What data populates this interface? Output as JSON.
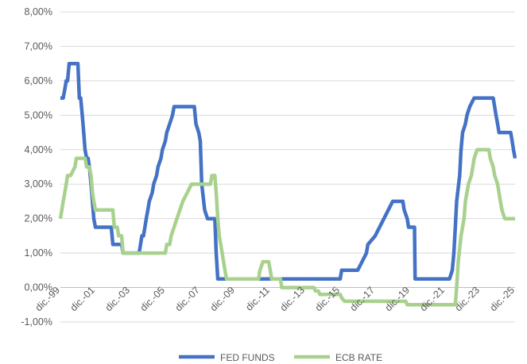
{
  "chart_data": {
    "type": "line",
    "title": "",
    "xlabel": "",
    "ylabel": "",
    "ylim": [
      -1,
      8
    ],
    "y_ticks": [
      "8,00%",
      "7,00%",
      "6,00%",
      "5,00%",
      "4,00%",
      "3,00%",
      "2,00%",
      "1,00%",
      "0,00%",
      "-1,00%"
    ],
    "y_tick_values": [
      8,
      7,
      6,
      5,
      4,
      3,
      2,
      1,
      0,
      -1
    ],
    "x_ticks": [
      "dic.-99",
      "dic.-01",
      "dic.-03",
      "dic.-05",
      "dic.-07",
      "dic.-09",
      "dic.-11",
      "dic.-13",
      "dic.-15",
      "dic.-17",
      "dic.-19",
      "dic.-21",
      "dic.-23",
      "dic.-25"
    ],
    "x_tick_values": [
      1999.92,
      2001.92,
      2003.92,
      2005.92,
      2007.92,
      2009.92,
      2011.92,
      2013.92,
      2015.92,
      2017.92,
      2019.92,
      2021.92,
      2023.92,
      2025.92
    ],
    "xlim": [
      1999.92,
      2025.92
    ],
    "grid": "horizontal",
    "legend_position": "bottom",
    "series": [
      {
        "name": "FED FUNDS",
        "color": "#4472C4",
        "points": [
          [
            1999.92,
            5.5
          ],
          [
            2000.08,
            5.5
          ],
          [
            2000.17,
            5.75
          ],
          [
            2000.25,
            6.0
          ],
          [
            2000.33,
            6.0
          ],
          [
            2000.42,
            6.5
          ],
          [
            2000.92,
            6.5
          ],
          [
            2001.0,
            5.5
          ],
          [
            2001.08,
            5.5
          ],
          [
            2001.17,
            5.0
          ],
          [
            2001.25,
            4.5
          ],
          [
            2001.33,
            4.0
          ],
          [
            2001.42,
            3.75
          ],
          [
            2001.5,
            3.75
          ],
          [
            2001.58,
            3.5
          ],
          [
            2001.67,
            3.0
          ],
          [
            2001.75,
            2.5
          ],
          [
            2001.83,
            2.0
          ],
          [
            2001.92,
            1.75
          ],
          [
            2002.83,
            1.75
          ],
          [
            2002.92,
            1.25
          ],
          [
            2003.42,
            1.25
          ],
          [
            2003.5,
            1.0
          ],
          [
            2004.42,
            1.0
          ],
          [
            2004.5,
            1.25
          ],
          [
            2004.58,
            1.5
          ],
          [
            2004.67,
            1.5
          ],
          [
            2004.75,
            1.75
          ],
          [
            2004.83,
            2.0
          ],
          [
            2004.92,
            2.25
          ],
          [
            2005.0,
            2.5
          ],
          [
            2005.17,
            2.75
          ],
          [
            2005.25,
            3.0
          ],
          [
            2005.42,
            3.25
          ],
          [
            2005.5,
            3.5
          ],
          [
            2005.67,
            3.75
          ],
          [
            2005.75,
            4.0
          ],
          [
            2005.92,
            4.25
          ],
          [
            2006.0,
            4.5
          ],
          [
            2006.17,
            4.75
          ],
          [
            2006.33,
            5.0
          ],
          [
            2006.42,
            5.25
          ],
          [
            2007.58,
            5.25
          ],
          [
            2007.67,
            4.75
          ],
          [
            2007.83,
            4.5
          ],
          [
            2007.92,
            4.25
          ],
          [
            2008.0,
            3.0
          ],
          [
            2008.17,
            2.25
          ],
          [
            2008.33,
            2.0
          ],
          [
            2008.75,
            2.0
          ],
          [
            2008.83,
            1.0
          ],
          [
            2008.92,
            0.25
          ],
          [
            2015.92,
            0.25
          ],
          [
            2016.0,
            0.5
          ],
          [
            2016.92,
            0.5
          ],
          [
            2017.17,
            0.75
          ],
          [
            2017.42,
            1.0
          ],
          [
            2017.5,
            1.25
          ],
          [
            2017.92,
            1.5
          ],
          [
            2018.17,
            1.75
          ],
          [
            2018.42,
            2.0
          ],
          [
            2018.67,
            2.25
          ],
          [
            2018.92,
            2.5
          ],
          [
            2019.5,
            2.5
          ],
          [
            2019.58,
            2.25
          ],
          [
            2019.75,
            2.0
          ],
          [
            2019.83,
            1.75
          ],
          [
            2020.17,
            1.75
          ],
          [
            2020.2,
            0.25
          ],
          [
            2022.17,
            0.25
          ],
          [
            2022.33,
            0.5
          ],
          [
            2022.42,
            1.0
          ],
          [
            2022.5,
            1.75
          ],
          [
            2022.58,
            2.5
          ],
          [
            2022.75,
            3.25
          ],
          [
            2022.83,
            4.0
          ],
          [
            2022.92,
            4.5
          ],
          [
            2023.08,
            4.75
          ],
          [
            2023.17,
            5.0
          ],
          [
            2023.33,
            5.25
          ],
          [
            2023.58,
            5.5
          ],
          [
            2024.67,
            5.5
          ],
          [
            2024.83,
            5.0
          ],
          [
            2024.92,
            4.75
          ],
          [
            2025.0,
            4.5
          ],
          [
            2025.67,
            4.5
          ],
          [
            2025.75,
            4.25
          ],
          [
            2025.83,
            4.0
          ],
          [
            2025.92,
            3.75
          ]
        ]
      },
      {
        "name": "ECB RATE",
        "color": "#A9D18E",
        "points": [
          [
            1999.92,
            2.0
          ],
          [
            2000.0,
            2.25
          ],
          [
            2000.08,
            2.5
          ],
          [
            2000.17,
            2.75
          ],
          [
            2000.25,
            3.0
          ],
          [
            2000.33,
            3.25
          ],
          [
            2000.5,
            3.25
          ],
          [
            2000.75,
            3.5
          ],
          [
            2000.83,
            3.75
          ],
          [
            2001.33,
            3.75
          ],
          [
            2001.42,
            3.5
          ],
          [
            2001.58,
            3.5
          ],
          [
            2001.67,
            3.25
          ],
          [
            2001.75,
            2.75
          ],
          [
            2001.83,
            2.5
          ],
          [
            2001.92,
            2.25
          ],
          [
            2002.92,
            2.25
          ],
          [
            2003.0,
            1.75
          ],
          [
            2003.17,
            1.75
          ],
          [
            2003.25,
            1.5
          ],
          [
            2003.42,
            1.5
          ],
          [
            2003.5,
            1.0
          ],
          [
            2005.92,
            1.0
          ],
          [
            2006.0,
            1.25
          ],
          [
            2006.17,
            1.25
          ],
          [
            2006.25,
            1.5
          ],
          [
            2006.42,
            1.75
          ],
          [
            2006.58,
            2.0
          ],
          [
            2006.75,
            2.25
          ],
          [
            2006.92,
            2.5
          ],
          [
            2007.17,
            2.75
          ],
          [
            2007.42,
            3.0
          ],
          [
            2008.5,
            3.0
          ],
          [
            2008.58,
            3.25
          ],
          [
            2008.75,
            3.25
          ],
          [
            2008.83,
            2.75
          ],
          [
            2008.92,
            2.0
          ],
          [
            2009.0,
            1.5
          ],
          [
            2009.17,
            1.0
          ],
          [
            2009.33,
            0.5
          ],
          [
            2009.42,
            0.25
          ],
          [
            2011.25,
            0.25
          ],
          [
            2011.33,
            0.5
          ],
          [
            2011.5,
            0.75
          ],
          [
            2011.83,
            0.75
          ],
          [
            2011.92,
            0.5
          ],
          [
            2012.0,
            0.25
          ],
          [
            2012.5,
            0.25
          ],
          [
            2012.58,
            0.0
          ],
          [
            2014.42,
            0.0
          ],
          [
            2014.5,
            -0.1
          ],
          [
            2014.67,
            -0.1
          ],
          [
            2014.75,
            -0.2
          ],
          [
            2015.92,
            -0.2
          ],
          [
            2016.0,
            -0.3
          ],
          [
            2016.17,
            -0.4
          ],
          [
            2019.67,
            -0.4
          ],
          [
            2019.75,
            -0.5
          ],
          [
            2022.5,
            -0.5
          ],
          [
            2022.58,
            0.0
          ],
          [
            2022.67,
            0.75
          ],
          [
            2022.83,
            1.5
          ],
          [
            2023.0,
            2.0
          ],
          [
            2023.08,
            2.5
          ],
          [
            2023.25,
            3.0
          ],
          [
            2023.42,
            3.25
          ],
          [
            2023.5,
            3.5
          ],
          [
            2023.58,
            3.75
          ],
          [
            2023.75,
            4.0
          ],
          [
            2024.42,
            4.0
          ],
          [
            2024.5,
            3.75
          ],
          [
            2024.67,
            3.5
          ],
          [
            2024.75,
            3.25
          ],
          [
            2024.92,
            3.0
          ],
          [
            2025.0,
            2.75
          ],
          [
            2025.08,
            2.5
          ],
          [
            2025.17,
            2.25
          ],
          [
            2025.33,
            2.0
          ],
          [
            2025.92,
            2.0
          ]
        ]
      }
    ]
  }
}
